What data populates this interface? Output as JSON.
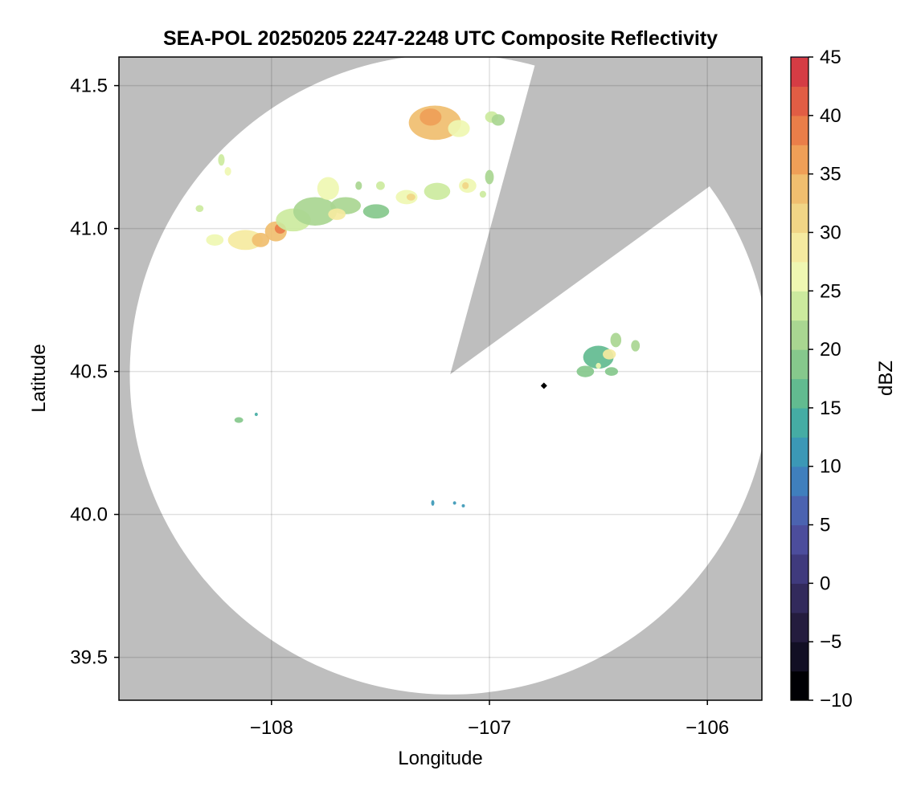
{
  "chart_data": {
    "type": "heatmap",
    "title": "SEA-POL 20250205 2247-2248 UTC Composite Reflectivity",
    "xlabel": "Longitude",
    "ylabel": "Latitude",
    "xlim": [
      -108.7,
      -105.75
    ],
    "ylim": [
      39.35,
      41.6
    ],
    "xticks": [
      -108,
      -107,
      -106
    ],
    "xtick_labels": [
      "−108",
      "−107",
      "−106"
    ],
    "yticks": [
      39.5,
      40.0,
      40.5,
      41.0,
      41.5
    ],
    "ytick_labels": [
      "39.5",
      "40.0",
      "40.5",
      "41.0",
      "41.5"
    ],
    "grid": true,
    "background_color": "#bebebe",
    "coverage_color": "#ffffff",
    "radar_center": {
      "lon": -107.18,
      "lat": 40.49
    },
    "radar_range_deg_lat": 1.12,
    "blocked_sector": {
      "from_lon": -106.81,
      "from_lat": 41.52,
      "to_lon": -106.04,
      "to_lat": 41.12
    },
    "radar_marker": {
      "lon": -106.75,
      "lat": 40.45,
      "color": "#000000"
    },
    "colorbar": {
      "label": "dBZ",
      "min": -10,
      "max": 45,
      "step": 2.5,
      "ticks": [
        -10,
        -5,
        0,
        5,
        10,
        15,
        20,
        25,
        30,
        35,
        40,
        45
      ],
      "tick_labels": [
        "−10",
        "−5",
        "0",
        "5",
        "10",
        "15",
        "20",
        "25",
        "30",
        "35",
        "40",
        "45"
      ],
      "colors": [
        "#000004",
        "#120f24",
        "#241c3e",
        "#322a5c",
        "#3f3a7d",
        "#4c4d9c",
        "#4b63b0",
        "#3f7fbd",
        "#3b98b6",
        "#45aca4",
        "#62bb90",
        "#86c88c",
        "#a9d691",
        "#ccea9e",
        "#eff7b2",
        "#f5eaa0",
        "#f1d586",
        "#f0be6f",
        "#ef9f57",
        "#ea7e49",
        "#e15d44",
        "#d53c44",
        "#c12849",
        "#a31552",
        "#c3357e",
        "#d95099",
        "#e883b7",
        "#d59bcd",
        "#b489c0",
        "#946aae",
        "#7a4d9a",
        "#5e2e82",
        "#3f0a60"
      ]
    },
    "cells": [
      {
        "lon": -107.25,
        "lat": 41.37,
        "rlon": 0.12,
        "rlat": 0.06,
        "dbz": 33
      },
      {
        "lon": -107.27,
        "lat": 41.39,
        "rlon": 0.05,
        "rlat": 0.03,
        "dbz": 36
      },
      {
        "lon": -107.14,
        "lat": 41.35,
        "rlon": 0.05,
        "rlat": 0.03,
        "dbz": 27
      },
      {
        "lon": -106.99,
        "lat": 41.39,
        "rlon": 0.03,
        "rlat": 0.02,
        "dbz": 23
      },
      {
        "lon": -106.96,
        "lat": 41.38,
        "rlon": 0.03,
        "rlat": 0.02,
        "dbz": 21
      },
      {
        "lon": -108.23,
        "lat": 41.24,
        "rlon": 0.015,
        "rlat": 0.02,
        "dbz": 24
      },
      {
        "lon": -108.2,
        "lat": 41.2,
        "rlon": 0.015,
        "rlat": 0.015,
        "dbz": 26
      },
      {
        "lon": -108.33,
        "lat": 41.07,
        "rlon": 0.018,
        "rlat": 0.012,
        "dbz": 23
      },
      {
        "lon": -108.26,
        "lat": 40.96,
        "rlon": 0.04,
        "rlat": 0.02,
        "dbz": 26
      },
      {
        "lon": -108.12,
        "lat": 40.96,
        "rlon": 0.08,
        "rlat": 0.035,
        "dbz": 29
      },
      {
        "lon": -108.05,
        "lat": 40.96,
        "rlon": 0.04,
        "rlat": 0.025,
        "dbz": 34
      },
      {
        "lon": -107.98,
        "lat": 40.99,
        "rlon": 0.05,
        "rlat": 0.035,
        "dbz": 33
      },
      {
        "lon": -107.96,
        "lat": 41.0,
        "rlon": 0.025,
        "rlat": 0.018,
        "dbz": 39
      },
      {
        "lon": -107.9,
        "lat": 41.03,
        "rlon": 0.08,
        "rlat": 0.04,
        "dbz": 24
      },
      {
        "lon": -107.8,
        "lat": 41.06,
        "rlon": 0.1,
        "rlat": 0.05,
        "dbz": 21
      },
      {
        "lon": -107.74,
        "lat": 41.14,
        "rlon": 0.05,
        "rlat": 0.04,
        "dbz": 26
      },
      {
        "lon": -107.66,
        "lat": 41.08,
        "rlon": 0.07,
        "rlat": 0.03,
        "dbz": 22
      },
      {
        "lon": -107.7,
        "lat": 41.05,
        "rlon": 0.04,
        "rlat": 0.02,
        "dbz": 28
      },
      {
        "lon": -107.52,
        "lat": 41.06,
        "rlon": 0.06,
        "rlat": 0.025,
        "dbz": 19
      },
      {
        "lon": -107.6,
        "lat": 41.15,
        "rlon": 0.015,
        "rlat": 0.015,
        "dbz": 21
      },
      {
        "lon": -107.5,
        "lat": 41.15,
        "rlon": 0.02,
        "rlat": 0.015,
        "dbz": 23
      },
      {
        "lon": -107.38,
        "lat": 41.11,
        "rlon": 0.05,
        "rlat": 0.025,
        "dbz": 25
      },
      {
        "lon": -107.36,
        "lat": 41.11,
        "rlon": 0.02,
        "rlat": 0.012,
        "dbz": 31
      },
      {
        "lon": -107.24,
        "lat": 41.13,
        "rlon": 0.06,
        "rlat": 0.03,
        "dbz": 24
      },
      {
        "lon": -107.1,
        "lat": 41.15,
        "rlon": 0.04,
        "rlat": 0.025,
        "dbz": 26
      },
      {
        "lon": -107.11,
        "lat": 41.15,
        "rlon": 0.015,
        "rlat": 0.012,
        "dbz": 32
      },
      {
        "lon": -107.0,
        "lat": 41.18,
        "rlon": 0.02,
        "rlat": 0.025,
        "dbz": 20
      },
      {
        "lon": -107.03,
        "lat": 41.12,
        "rlon": 0.015,
        "rlat": 0.012,
        "dbz": 23
      },
      {
        "lon": -106.5,
        "lat": 40.55,
        "rlon": 0.07,
        "rlat": 0.04,
        "dbz": 17
      },
      {
        "lon": -106.45,
        "lat": 40.56,
        "rlon": 0.03,
        "rlat": 0.018,
        "dbz": 28
      },
      {
        "lon": -106.42,
        "lat": 40.61,
        "rlon": 0.025,
        "rlat": 0.025,
        "dbz": 21
      },
      {
        "lon": -106.33,
        "lat": 40.59,
        "rlon": 0.02,
        "rlat": 0.02,
        "dbz": 22
      },
      {
        "lon": -106.56,
        "lat": 40.5,
        "rlon": 0.04,
        "rlat": 0.02,
        "dbz": 19
      },
      {
        "lon": -106.44,
        "lat": 40.5,
        "rlon": 0.03,
        "rlat": 0.015,
        "dbz": 18
      },
      {
        "lon": -106.5,
        "lat": 40.52,
        "rlon": 0.012,
        "rlat": 0.01,
        "dbz": 27
      },
      {
        "lon": -108.15,
        "lat": 40.33,
        "rlon": 0.02,
        "rlat": 0.01,
        "dbz": 18
      },
      {
        "lon": -108.07,
        "lat": 40.35,
        "rlon": 0.006,
        "rlat": 0.006,
        "dbz": 14
      },
      {
        "lon": -107.26,
        "lat": 40.04,
        "rlon": 0.005,
        "rlat": 0.01,
        "dbz": 11
      },
      {
        "lon": -107.16,
        "lat": 40.04,
        "rlon": 0.004,
        "rlat": 0.006,
        "dbz": 11
      },
      {
        "lon": -107.12,
        "lat": 40.03,
        "rlon": 0.004,
        "rlat": 0.004,
        "dbz": 12
      }
    ]
  }
}
